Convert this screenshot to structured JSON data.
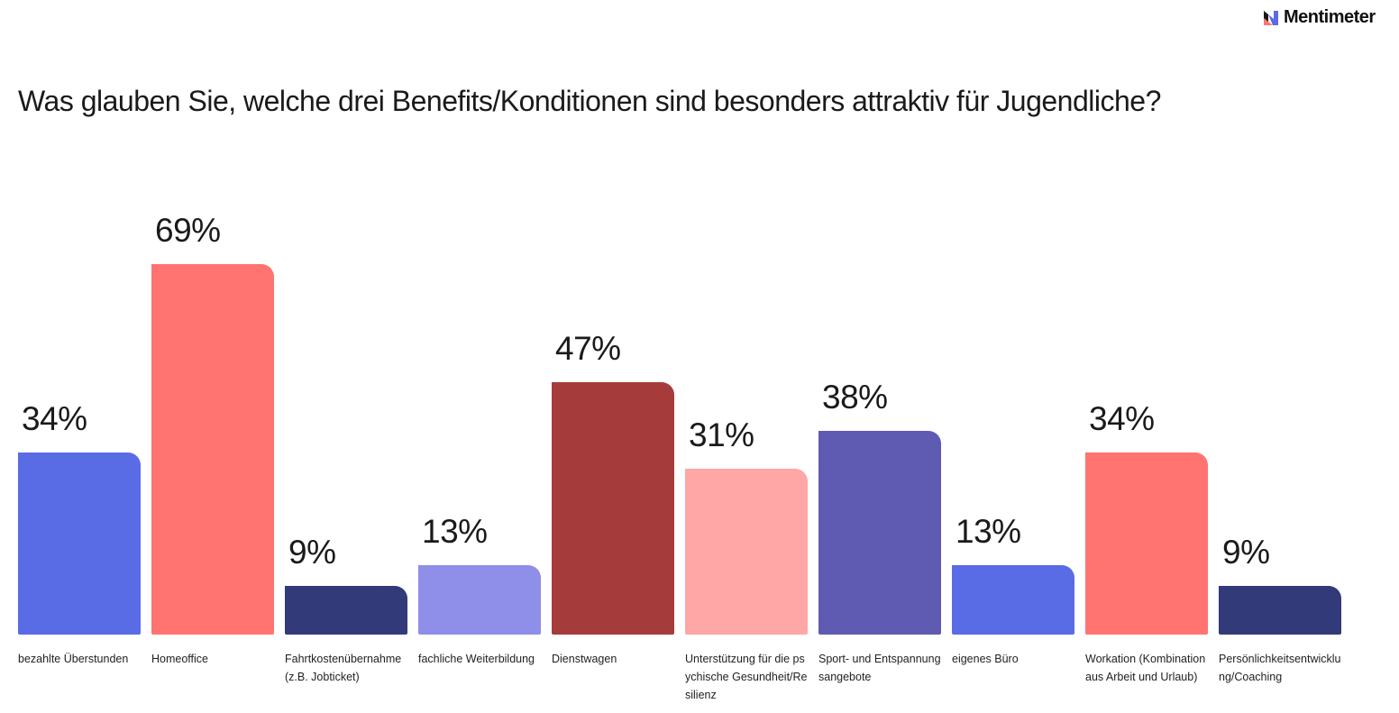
{
  "brand": {
    "name": "Mentimeter"
  },
  "chart_data": {
    "type": "bar",
    "title": "Was glauben Sie, welche drei Benefits/Konditionen sind besonders attraktiv für Jugendliche?",
    "xlabel": "",
    "ylabel": "",
    "ylim": [
      0,
      100
    ],
    "grid": false,
    "categories": [
      "bezahlte Überstunden",
      "Homeoffice",
      "Fahrtkostenübernahme (z.B. Jobticket)",
      "fachliche Weiterbildung",
      "Dienstwagen",
      "Unterstützung für die psychische Gesundheit/Resilienz",
      "Sport- und Entspannungsangebote",
      "eigenes Büro",
      "Workation (Kombination aus Arbeit und Urlaub)",
      "Persönlichkeitsentwicklung/Coaching"
    ],
    "values": [
      34,
      69,
      9,
      13,
      47,
      31,
      38,
      13,
      34,
      9
    ],
    "value_labels": [
      "34%",
      "69%",
      "9%",
      "13%",
      "47%",
      "31%",
      "38%",
      "13%",
      "34%",
      "9%"
    ],
    "colors": [
      "#5a6be6",
      "#ff7470",
      "#323a7a",
      "#8f8ee8",
      "#a63b3b",
      "#ffa6a6",
      "#5f5bb3",
      "#5a6be6",
      "#ff7470",
      "#323a7a"
    ]
  }
}
